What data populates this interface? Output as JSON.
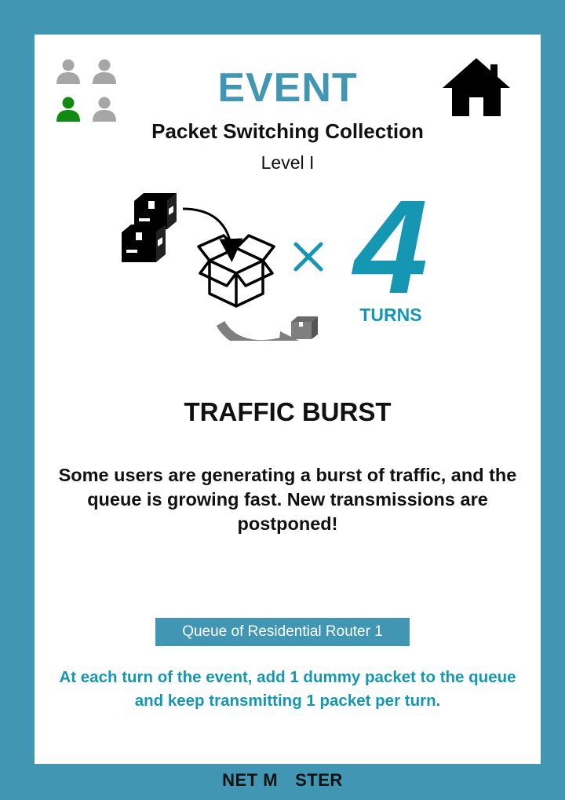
{
  "card": {
    "type_label": "EVENT",
    "collection": "Packet Switching Collection",
    "level": "Level I",
    "duration": {
      "number": "4",
      "unit": "TURNS"
    },
    "event_name": "TRAFFIC BURST",
    "description": "Some users are generating a burst of traffic, and the queue is growing fast. New transmissions are postponed!",
    "target": "Queue of Residential Router 1",
    "instruction": "At each turn of the event, add 1 dummy packet to the queue and keep transmitting 1 packet per turn."
  },
  "players": {
    "icons": [
      "person-icon",
      "person-icon",
      "person-icon",
      "person-icon"
    ],
    "active_index": 2,
    "colors": {
      "active": "#108a10",
      "inactive": "#a6a6a6"
    }
  },
  "footer": {
    "brand_left": "NET M",
    "brand_right": "STER"
  },
  "colors": {
    "frame": "#4196b3",
    "accent": "#1596b3",
    "text": "#111111"
  },
  "icons": {
    "home": "home-icon",
    "illustration": "packet-queue-illustration",
    "multiply": "multiply-icon",
    "brand_a": "antenna-a-icon"
  }
}
